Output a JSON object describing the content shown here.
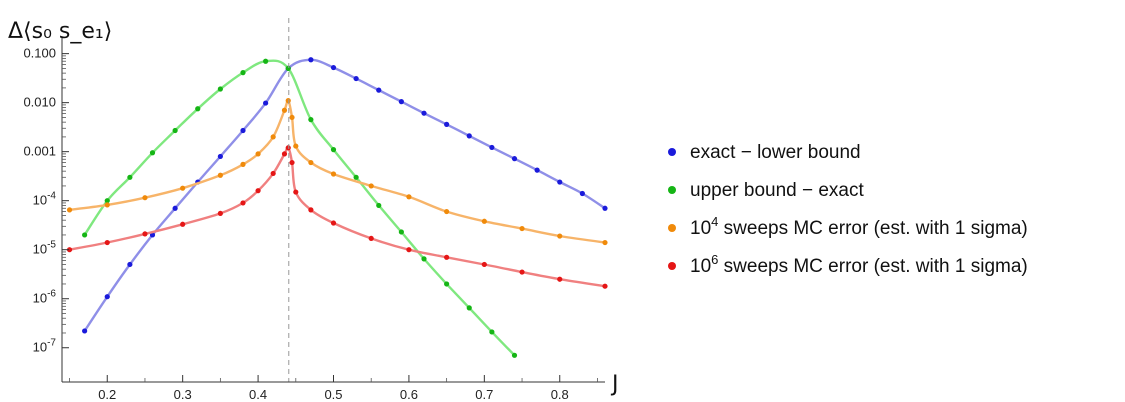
{
  "chart_data": {
    "type": "line",
    "ylabel": "Δ⟨s₀ s_e₁⟩",
    "xlabel": "J",
    "ylog": true,
    "xlim": [
      0.14,
      0.86
    ],
    "ylim": [
      2e-08,
      0.15
    ],
    "xticks": [
      0.2,
      0.3,
      0.4,
      0.5,
      0.6,
      0.7,
      0.8
    ],
    "xtick_labels": [
      "0.2",
      "0.3",
      "0.4",
      "0.5",
      "0.6",
      "0.7",
      "0.8"
    ],
    "yticks": [
      1e-07,
      1e-06,
      1e-05,
      0.0001,
      0.001,
      0.01,
      0.1
    ],
    "ytick_labels": [
      {
        "base": "10",
        "exp": "-7"
      },
      {
        "base": "10",
        "exp": "-6"
      },
      {
        "base": "10",
        "exp": "-5"
      },
      {
        "base": "10",
        "exp": "-4"
      },
      {
        "base": "0.001",
        "exp": ""
      },
      {
        "base": "0.010",
        "exp": ""
      },
      {
        "base": "0.100",
        "exp": ""
      }
    ],
    "critical_line_x": 0.4407,
    "grid": false,
    "legend_position": "right",
    "series": [
      {
        "name": "exact − lower bound",
        "name_parts": {
          "pre": "",
          "sup": "",
          "post": "exact − lower bound"
        },
        "point_color": "#1a1adb",
        "line_color": "#8f8fe8",
        "points": [
          [
            0.17,
            2.2e-07
          ],
          [
            0.2,
            1.1e-06
          ],
          [
            0.23,
            5e-06
          ],
          [
            0.26,
            2e-05
          ],
          [
            0.29,
            7e-05
          ],
          [
            0.32,
            0.00024
          ],
          [
            0.35,
            0.0008
          ],
          [
            0.38,
            0.0027
          ],
          [
            0.41,
            0.0098
          ],
          [
            0.44,
            0.05
          ],
          [
            0.47,
            0.075
          ],
          [
            0.5,
            0.052
          ],
          [
            0.53,
            0.031
          ],
          [
            0.56,
            0.018
          ],
          [
            0.59,
            0.0105
          ],
          [
            0.62,
            0.0061
          ],
          [
            0.65,
            0.0036
          ],
          [
            0.68,
            0.0021
          ],
          [
            0.71,
            0.00122
          ],
          [
            0.74,
            0.00072
          ],
          [
            0.77,
            0.00042
          ],
          [
            0.8,
            0.00024
          ],
          [
            0.83,
            0.00014
          ],
          [
            0.86,
            7e-05
          ]
        ]
      },
      {
        "name": "upper bound − exact",
        "name_parts": {
          "pre": "",
          "sup": "",
          "post": "upper bound − exact"
        },
        "point_color": "#15b515",
        "line_color": "#7fe87f",
        "points": [
          [
            0.17,
            2e-05
          ],
          [
            0.2,
            0.0001
          ],
          [
            0.23,
            0.0003
          ],
          [
            0.26,
            0.00095
          ],
          [
            0.29,
            0.0027
          ],
          [
            0.32,
            0.0075
          ],
          [
            0.35,
            0.019
          ],
          [
            0.38,
            0.041
          ],
          [
            0.41,
            0.07
          ],
          [
            0.44,
            0.05
          ],
          [
            0.47,
            0.0045
          ],
          [
            0.5,
            0.0011
          ],
          [
            0.53,
            0.0003
          ],
          [
            0.56,
            8e-05
          ],
          [
            0.59,
            2.3e-05
          ],
          [
            0.62,
            6.5e-06
          ],
          [
            0.65,
            2e-06
          ],
          [
            0.68,
            6.5e-07
          ],
          [
            0.71,
            2.1e-07
          ],
          [
            0.74,
            7e-08
          ]
        ]
      },
      {
        "name": "10⁴ sweeps MC error (est. with 1 sigma)",
        "name_parts": {
          "pre": "10",
          "sup": "4",
          "post": " sweeps MC error (est. with 1 sigma)"
        },
        "point_color": "#f08a0a",
        "line_color": "#f7b469",
        "points": [
          [
            0.15,
            6.5e-05
          ],
          [
            0.2,
            8.2e-05
          ],
          [
            0.25,
            0.000115
          ],
          [
            0.3,
            0.00018
          ],
          [
            0.35,
            0.00033
          ],
          [
            0.38,
            0.00055
          ],
          [
            0.4,
            0.0009
          ],
          [
            0.42,
            0.002
          ],
          [
            0.435,
            0.007
          ],
          [
            0.44,
            0.011
          ],
          [
            0.445,
            0.005
          ],
          [
            0.45,
            0.0013
          ],
          [
            0.47,
            0.0006
          ],
          [
            0.5,
            0.00035
          ],
          [
            0.55,
            0.0002
          ],
          [
            0.6,
            0.00012
          ],
          [
            0.65,
            6e-05
          ],
          [
            0.7,
            3.8e-05
          ],
          [
            0.75,
            2.7e-05
          ],
          [
            0.8,
            1.9e-05
          ],
          [
            0.86,
            1.4e-05
          ]
        ]
      },
      {
        "name": "10⁶ sweeps MC error (est. with 1 sigma)",
        "name_parts": {
          "pre": "10",
          "sup": "6",
          "post": " sweeps MC error (est. with 1 sigma)"
        },
        "point_color": "#e51616",
        "line_color": "#f08080",
        "points": [
          [
            0.15,
            1e-05
          ],
          [
            0.2,
            1.4e-05
          ],
          [
            0.25,
            2.1e-05
          ],
          [
            0.3,
            3.3e-05
          ],
          [
            0.35,
            5.5e-05
          ],
          [
            0.38,
            9e-05
          ],
          [
            0.4,
            0.00016
          ],
          [
            0.42,
            0.00036
          ],
          [
            0.435,
            0.0009
          ],
          [
            0.44,
            0.0012
          ],
          [
            0.445,
            0.0006
          ],
          [
            0.45,
            0.00015
          ],
          [
            0.47,
            6.5e-05
          ],
          [
            0.5,
            3.5e-05
          ],
          [
            0.55,
            1.7e-05
          ],
          [
            0.6,
            1e-05
          ],
          [
            0.65,
            7e-06
          ],
          [
            0.7,
            5e-06
          ],
          [
            0.75,
            3.5e-06
          ],
          [
            0.8,
            2.5e-06
          ],
          [
            0.86,
            1.8e-06
          ]
        ]
      }
    ]
  }
}
